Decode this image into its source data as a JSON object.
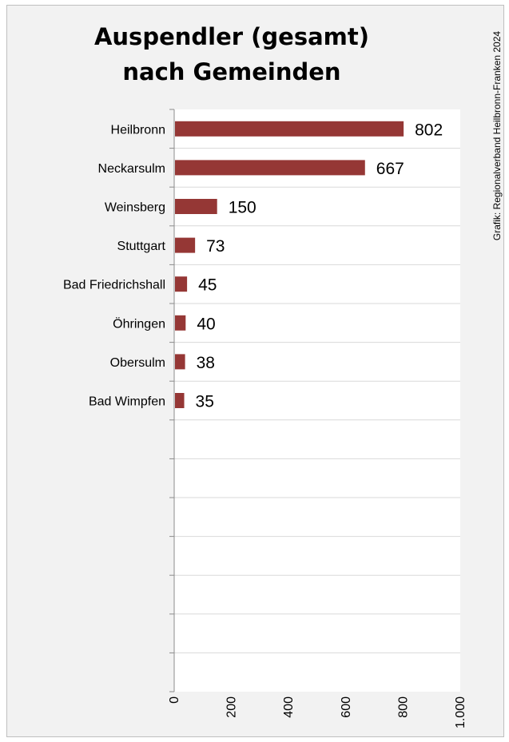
{
  "chart_data": {
    "type": "bar",
    "orientation": "horizontal",
    "title_lines": [
      "Auspendler (gesamt)",
      "nach Gemeinden"
    ],
    "source_note": "Grafik: Regionalverband Heilbronn-Franken 2024",
    "categories": [
      "Heilbronn",
      "Neckarsulm",
      "Weinsberg",
      "Stuttgart",
      "Bad Friedrichshall",
      "Öhringen",
      "Obersulm",
      "Bad Wimpfen"
    ],
    "values": [
      802,
      667,
      150,
      73,
      45,
      40,
      38,
      35
    ],
    "xlim": [
      0,
      1000
    ],
    "x_ticks": [
      0,
      200,
      400,
      600,
      800,
      1000
    ],
    "x_tick_labels": [
      "0",
      "200",
      "400",
      "600",
      "800",
      "1.000"
    ],
    "empty_slots": 7,
    "grid": true,
    "legend": "none",
    "bar_color": "#953735"
  }
}
